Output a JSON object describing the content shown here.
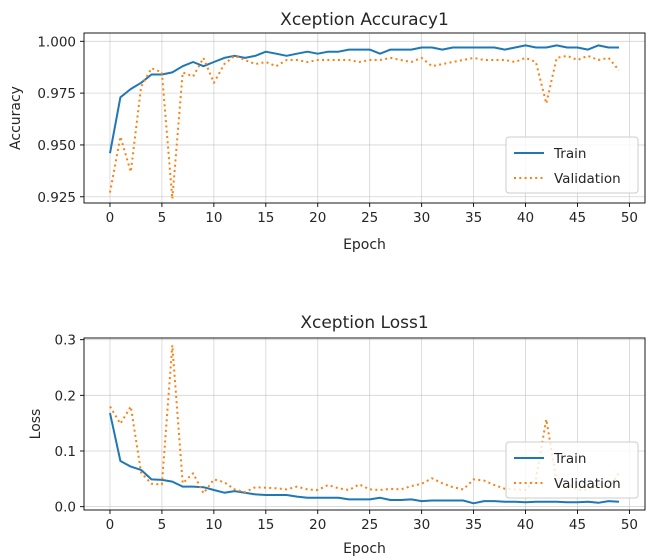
{
  "chart_data": [
    {
      "type": "line",
      "title": "Xception Accuracy1",
      "xlabel": "Epoch",
      "ylabel": "Accuracy",
      "xlim": [
        -2.5,
        51.5
      ],
      "ylim": [
        0.922,
        1.004
      ],
      "xticks": [
        0,
        5,
        10,
        15,
        20,
        25,
        30,
        35,
        40,
        45,
        50
      ],
      "yticks": [
        0.925,
        0.95,
        0.975,
        1.0
      ],
      "ytick_labels": [
        "0.925",
        "0.950",
        "0.975",
        "1.000"
      ],
      "grid": true,
      "legend": "lower right",
      "x": [
        0,
        1,
        2,
        3,
        4,
        5,
        6,
        7,
        8,
        9,
        10,
        11,
        12,
        13,
        14,
        15,
        16,
        17,
        18,
        19,
        20,
        21,
        22,
        23,
        24,
        25,
        26,
        27,
        28,
        29,
        30,
        31,
        32,
        33,
        34,
        35,
        36,
        37,
        38,
        39,
        40,
        41,
        42,
        43,
        44,
        45,
        46,
        47,
        48,
        49
      ],
      "series": [
        {
          "name": "Train",
          "color": "#1f77b4",
          "style": "solid",
          "values": [
            0.946,
            0.973,
            0.977,
            0.98,
            0.984,
            0.984,
            0.985,
            0.988,
            0.99,
            0.988,
            0.99,
            0.992,
            0.993,
            0.992,
            0.993,
            0.995,
            0.994,
            0.993,
            0.994,
            0.995,
            0.994,
            0.995,
            0.995,
            0.996,
            0.996,
            0.996,
            0.994,
            0.996,
            0.996,
            0.996,
            0.997,
            0.997,
            0.996,
            0.997,
            0.997,
            0.997,
            0.997,
            0.997,
            0.996,
            0.997,
            0.998,
            0.997,
            0.997,
            0.998,
            0.997,
            0.997,
            0.996,
            0.998,
            0.997,
            0.997
          ]
        },
        {
          "name": "Validation",
          "color": "#ff7f0e",
          "style": "dotted",
          "values": [
            0.927,
            0.954,
            0.937,
            0.978,
            0.987,
            0.985,
            0.924,
            0.985,
            0.983,
            0.992,
            0.98,
            0.989,
            0.993,
            0.991,
            0.989,
            0.99,
            0.988,
            0.991,
            0.991,
            0.99,
            0.991,
            0.991,
            0.991,
            0.991,
            0.99,
            0.991,
            0.991,
            0.992,
            0.991,
            0.99,
            0.992,
            0.988,
            0.989,
            0.99,
            0.991,
            0.992,
            0.991,
            0.991,
            0.991,
            0.99,
            0.992,
            0.99,
            0.97,
            0.992,
            0.993,
            0.991,
            0.993,
            0.991,
            0.992,
            0.986
          ]
        }
      ]
    },
    {
      "type": "line",
      "title": "Xception Loss1",
      "xlabel": "Epoch",
      "ylabel": "Loss",
      "xlim": [
        -2.5,
        51.5
      ],
      "ylim": [
        -0.006,
        0.303
      ],
      "xticks": [
        0,
        5,
        10,
        15,
        20,
        25,
        30,
        35,
        40,
        45,
        50
      ],
      "yticks": [
        0.0,
        0.1,
        0.2,
        0.3
      ],
      "ytick_labels": [
        "0.0",
        "0.1",
        "0.2",
        "0.3"
      ],
      "grid": true,
      "legend": "lower right",
      "x": [
        0,
        1,
        2,
        3,
        4,
        5,
        6,
        7,
        8,
        9,
        10,
        11,
        12,
        13,
        14,
        15,
        16,
        17,
        18,
        19,
        20,
        21,
        22,
        23,
        24,
        25,
        26,
        27,
        28,
        29,
        30,
        31,
        32,
        33,
        34,
        35,
        36,
        37,
        38,
        39,
        40,
        41,
        42,
        43,
        44,
        45,
        46,
        47,
        48,
        49
      ],
      "series": [
        {
          "name": "Train",
          "color": "#1f77b4",
          "style": "solid",
          "values": [
            0.168,
            0.082,
            0.072,
            0.066,
            0.049,
            0.048,
            0.045,
            0.036,
            0.036,
            0.035,
            0.03,
            0.025,
            0.028,
            0.025,
            0.022,
            0.021,
            0.021,
            0.021,
            0.018,
            0.016,
            0.016,
            0.016,
            0.016,
            0.013,
            0.013,
            0.013,
            0.016,
            0.012,
            0.012,
            0.013,
            0.01,
            0.011,
            0.011,
            0.011,
            0.011,
            0.006,
            0.01,
            0.01,
            0.009,
            0.009,
            0.008,
            0.009,
            0.009,
            0.009,
            0.008,
            0.008,
            0.009,
            0.007,
            0.01,
            0.009
          ]
        },
        {
          "name": "Validation",
          "color": "#ff7f0e",
          "style": "dotted",
          "values": [
            0.18,
            0.149,
            0.18,
            0.061,
            0.041,
            0.04,
            0.29,
            0.042,
            0.06,
            0.024,
            0.049,
            0.044,
            0.031,
            0.026,
            0.035,
            0.034,
            0.033,
            0.031,
            0.036,
            0.031,
            0.03,
            0.039,
            0.033,
            0.03,
            0.04,
            0.031,
            0.03,
            0.032,
            0.031,
            0.037,
            0.041,
            0.051,
            0.042,
            0.035,
            0.031,
            0.049,
            0.047,
            0.039,
            0.032,
            0.031,
            0.03,
            0.05,
            0.157,
            0.045,
            0.041,
            0.03,
            0.031,
            0.041,
            0.033,
            0.061
          ]
        }
      ]
    }
  ]
}
